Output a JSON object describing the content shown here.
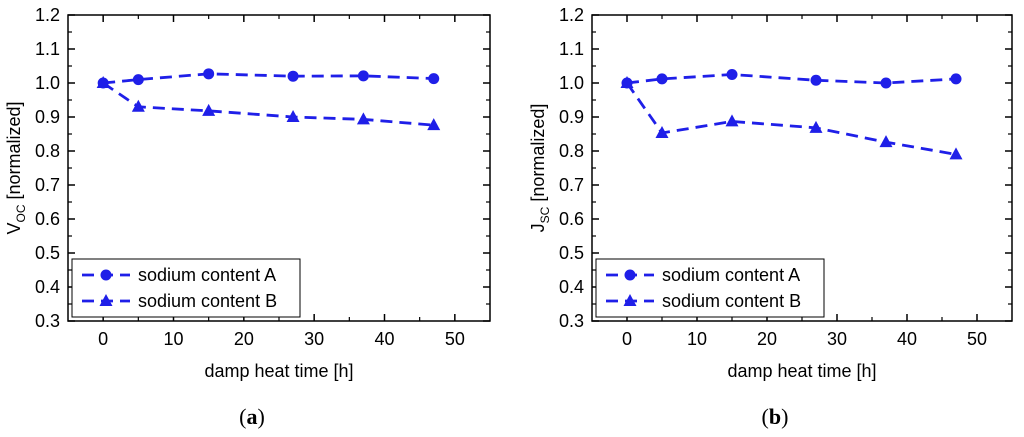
{
  "chart_data": [
    {
      "id": "a",
      "type": "line",
      "panel_label": "a",
      "xlabel": "damp heat time [h]",
      "ylabel_main": "V",
      "ylabel_sub": "OC",
      "ylabel_rest": " [normalized]",
      "xlim": [
        -5,
        55
      ],
      "ylim": [
        0.3,
        1.2
      ],
      "xticks": [
        0,
        10,
        20,
        30,
        40,
        50
      ],
      "yticks": [
        0.3,
        0.4,
        0.5,
        0.6,
        0.7,
        0.8,
        0.9,
        1.0,
        1.1,
        1.2
      ],
      "legend_position": "bottom-left",
      "series": [
        {
          "name": "sodium content A",
          "marker": "circle",
          "color": "#1f1fe8",
          "x": [
            0,
            5,
            15,
            27,
            37,
            47
          ],
          "y": [
            1.0,
            1.01,
            1.027,
            1.02,
            1.021,
            1.013
          ]
        },
        {
          "name": "sodium content B",
          "marker": "triangle",
          "color": "#1f1fe8",
          "x": [
            0,
            5,
            15,
            27,
            37,
            47
          ],
          "y": [
            1.0,
            0.93,
            0.918,
            0.9,
            0.893,
            0.876
          ]
        }
      ]
    },
    {
      "id": "b",
      "type": "line",
      "panel_label": "b",
      "xlabel": "damp heat time [h]",
      "ylabel_main": "J",
      "ylabel_sub": "SC",
      "ylabel_rest": " [normalized]",
      "xlim": [
        -5,
        55
      ],
      "ylim": [
        0.3,
        1.2
      ],
      "xticks": [
        0,
        10,
        20,
        30,
        40,
        50
      ],
      "yticks": [
        0.3,
        0.4,
        0.5,
        0.6,
        0.7,
        0.8,
        0.9,
        1.0,
        1.1,
        1.2
      ],
      "legend_position": "bottom-left",
      "series": [
        {
          "name": "sodium content A",
          "marker": "circle",
          "color": "#1f1fe8",
          "x": [
            0,
            5,
            15,
            27,
            37,
            47
          ],
          "y": [
            1.0,
            1.012,
            1.025,
            1.008,
            1.0,
            1.012
          ]
        },
        {
          "name": "sodium content B",
          "marker": "triangle",
          "color": "#1f1fe8",
          "x": [
            0,
            5,
            15,
            27,
            37,
            47
          ],
          "y": [
            1.0,
            0.853,
            0.887,
            0.868,
            0.826,
            0.79
          ]
        }
      ]
    }
  ]
}
